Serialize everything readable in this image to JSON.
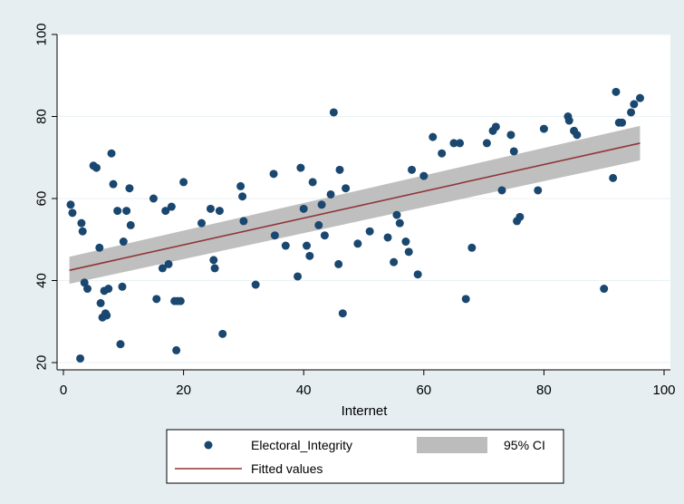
{
  "chart_data": {
    "type": "scatter",
    "xlabel": "Internet",
    "ylabel": "",
    "xlim": [
      0,
      100
    ],
    "ylim": [
      20,
      100
    ],
    "xticks": [
      0,
      20,
      40,
      60,
      80,
      100
    ],
    "yticks": [
      20,
      40,
      60,
      80,
      100
    ],
    "grid": "horizontal",
    "legend_position": "bottom",
    "colors": {
      "points": "#1a476f",
      "fit_line": "#90353b",
      "ci_band": "#bcbcbc",
      "plot_background": "#ffffff",
      "outer_background": "#e6eef2"
    },
    "series": [
      {
        "name": "Electoral_Integrity",
        "kind": "scatter",
        "x": [
          1.2,
          1.5,
          2.8,
          3.0,
          3.2,
          3.5,
          4.0,
          5.0,
          5.5,
          6.0,
          6.2,
          6.5,
          6.8,
          7.0,
          7.2,
          7.5,
          8.0,
          8.3,
          9.0,
          9.5,
          9.8,
          10.0,
          10.5,
          11.0,
          11.2,
          15.0,
          15.5,
          16.5,
          17.0,
          17.5,
          18.0,
          18.5,
          18.8,
          19.0,
          19.5,
          20.0,
          23.0,
          24.5,
          25.0,
          25.2,
          26.0,
          26.5,
          29.5,
          29.8,
          30.0,
          32.0,
          35.0,
          35.2,
          37.0,
          39.0,
          39.5,
          40.0,
          40.5,
          41.0,
          41.5,
          42.5,
          43.0,
          43.5,
          44.5,
          45.0,
          45.8,
          46.0,
          46.5,
          47.0,
          49.0,
          51.0,
          54.0,
          55.0,
          55.5,
          56.0,
          57.0,
          57.5,
          58.0,
          59.0,
          60.0,
          61.5,
          63.0,
          65.0,
          66.0,
          67.0,
          68.0,
          70.5,
          71.5,
          72.0,
          73.0,
          74.5,
          75.0,
          75.5,
          76.0,
          79.0,
          80.0,
          84.0,
          84.2,
          85.0,
          85.5,
          90.0,
          91.5,
          92.0,
          92.5,
          93.0,
          94.5,
          95.0,
          96.0
        ],
        "y": [
          58.5,
          56.5,
          21.0,
          54.0,
          52.0,
          39.5,
          38.0,
          68.0,
          67.5,
          48.0,
          34.5,
          31.0,
          37.5,
          32.0,
          31.5,
          38.0,
          71.0,
          63.5,
          57.0,
          24.5,
          38.5,
          49.5,
          57.0,
          62.5,
          53.5,
          60.0,
          35.5,
          43.0,
          57.0,
          44.0,
          58.0,
          35.0,
          23.0,
          35.0,
          35.0,
          64.0,
          54.0,
          57.5,
          45.0,
          43.0,
          57.0,
          27.0,
          63.0,
          60.5,
          54.5,
          39.0,
          66.0,
          51.0,
          48.5,
          41.0,
          67.5,
          57.5,
          48.5,
          46.0,
          64.0,
          53.5,
          58.5,
          51.0,
          61.0,
          81.0,
          44.0,
          67.0,
          32.0,
          62.5,
          49.0,
          52.0,
          50.5,
          44.5,
          56.0,
          54.0,
          49.5,
          47.0,
          67.0,
          41.5,
          65.5,
          75.0,
          71.0,
          73.5,
          73.5,
          35.5,
          48.0,
          73.5,
          76.5,
          77.5,
          62.0,
          75.5,
          71.5,
          54.5,
          55.5,
          62.0,
          77.0,
          80.0,
          79.0,
          76.5,
          75.5,
          38.0,
          65.0,
          86.0,
          78.5,
          78.5,
          81.0,
          83.0,
          84.5
        ]
      },
      {
        "name": "Fitted values",
        "kind": "line",
        "x": [
          1,
          96
        ],
        "y": [
          42.5,
          73.5
        ]
      },
      {
        "name": "95% CI",
        "kind": "band",
        "x": [
          1,
          96
        ],
        "lower": [
          39.2,
          69.3
        ],
        "upper": [
          45.8,
          77.7
        ]
      }
    ]
  }
}
